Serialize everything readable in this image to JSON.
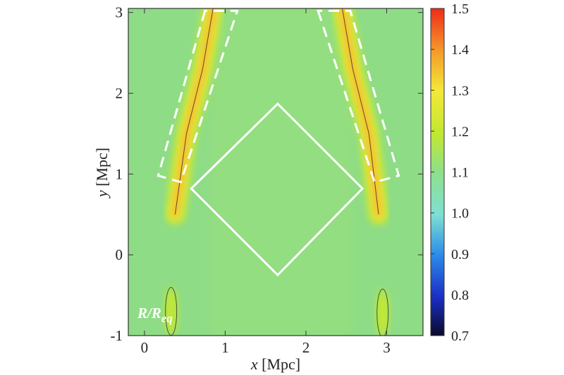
{
  "chart_data": {
    "type": "heatmap",
    "title": "",
    "xlabel": {
      "var": "x",
      "unit": " [Mpc]"
    },
    "ylabel": {
      "var": "y",
      "unit": " [Mpc]"
    },
    "xlim": [
      -0.2,
      3.45
    ],
    "ylim": [
      -1.0,
      3.05
    ],
    "x_ticks": [
      "0",
      "1",
      "2",
      "3"
    ],
    "x_tick_values": [
      0,
      1,
      2,
      3
    ],
    "y_ticks": [
      "-1",
      "0",
      "1",
      "2",
      "3"
    ],
    "y_tick_values": [
      -1,
      0,
      1,
      2,
      3
    ],
    "colorbar": {
      "min": 0.7,
      "max": 1.5,
      "ticks": [
        "0.7",
        "0.8",
        "0.9",
        "1.0",
        "1.1",
        "1.2",
        "1.3",
        "1.4",
        "1.5"
      ],
      "tick_values": [
        0.7,
        0.8,
        0.9,
        1.0,
        1.1,
        1.2,
        1.3,
        1.4,
        1.5
      ]
    },
    "annotation": {
      "main": "R/R",
      "sub": "eq"
    },
    "background_value": 1.05,
    "diamond_solid": [
      [
        1.65,
        1.87
      ],
      [
        2.7,
        0.82
      ],
      [
        1.65,
        -0.25
      ],
      [
        0.58,
        0.82
      ]
    ],
    "dashed_left": [
      [
        0.75,
        3.02
      ],
      [
        0.17,
        0.98
      ],
      [
        0.45,
        0.9
      ],
      [
        1.15,
        3.02
      ]
    ],
    "dashed_right": [
      [
        2.15,
        3.02
      ],
      [
        2.85,
        0.9
      ],
      [
        3.15,
        0.98
      ],
      [
        2.55,
        3.02
      ]
    ],
    "ridges": [
      {
        "path": [
          [
            0.85,
            3.05
          ],
          [
            0.72,
            2.3
          ],
          [
            0.52,
            1.5
          ],
          [
            0.38,
            0.5
          ]
        ],
        "peak": 1.38
      },
      {
        "path": [
          [
            2.45,
            3.05
          ],
          [
            2.58,
            2.3
          ],
          [
            2.78,
            1.5
          ],
          [
            2.9,
            0.5
          ]
        ],
        "peak": 1.38
      }
    ],
    "bottom_blobs": [
      {
        "center": [
          0.33,
          -0.7
        ],
        "value": 1.2
      },
      {
        "center": [
          2.95,
          -0.72
        ],
        "value": 1.2
      }
    ]
  }
}
